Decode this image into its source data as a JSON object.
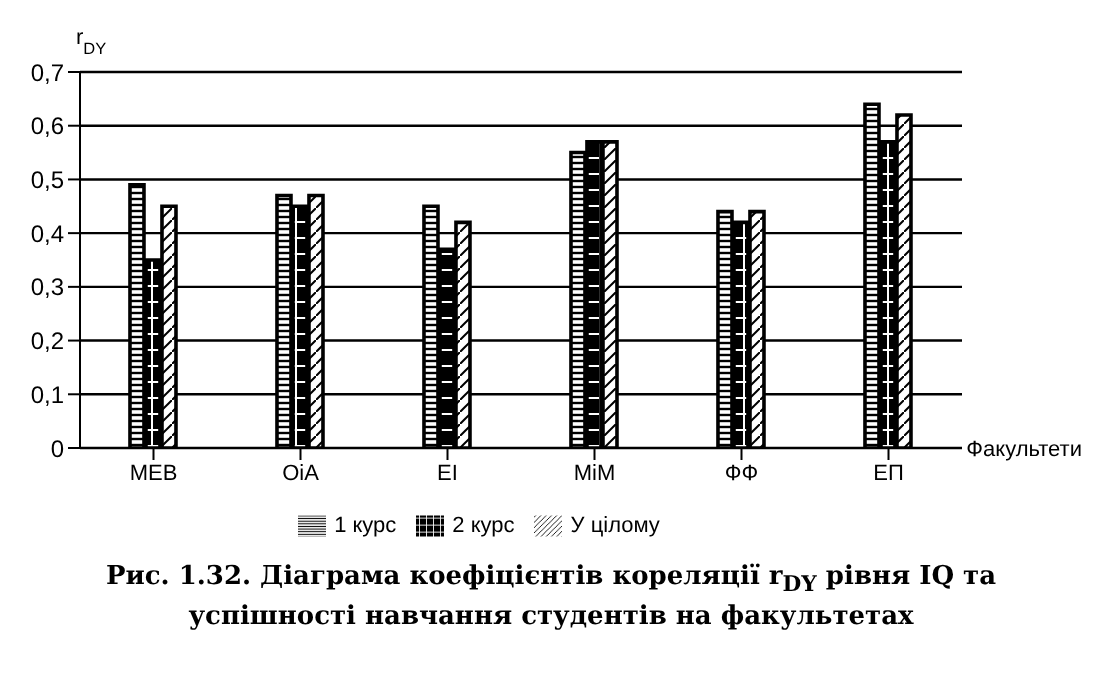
{
  "chart_data": {
    "type": "bar",
    "title": "Рис. 1.32. Діаграма коефіцієнтів кореляції r$_{DY}$ рівня IQ та успішності навчання студентів на факультетах",
    "xlabel": "Факультети",
    "ylabel": "r$_{DY}$",
    "categories": [
      "МЕВ",
      "ОіА",
      "ЕІ",
      "МіМ",
      "ФФ",
      "ЕП"
    ],
    "series": [
      {
        "name": "1 курс",
        "color": "#000000",
        "values": [
          0.49,
          0.47,
          0.45,
          0.55,
          0.44,
          0.64
        ]
      },
      {
        "name": "2 курс",
        "color": "#000000",
        "values": [
          0.35,
          0.45,
          0.37,
          0.57,
          0.42,
          0.57
        ]
      },
      {
        "name": "У цілому",
        "color": "#000000",
        "values": [
          0.45,
          0.47,
          0.42,
          0.57,
          0.44,
          0.62
        ]
      }
    ],
    "ylim": [
      0,
      0.7
    ],
    "yticks": [
      0,
      {
        "value": 0.1,
        "label": "0,1"
      },
      {
        "value": 0.2,
        "label": "0,2"
      },
      {
        "value": 0.3,
        "label": "0,3"
      },
      {
        "value": 0.4,
        "label": "0,4"
      },
      {
        "value": 0.5,
        "label": "0,5"
      },
      {
        "value": 0.6,
        "label": "0,6"
      },
      {
        "value": 0.7,
        "label": "0,7"
      }
    ],
    "grid": "y",
    "legend": "bottom"
  }
}
